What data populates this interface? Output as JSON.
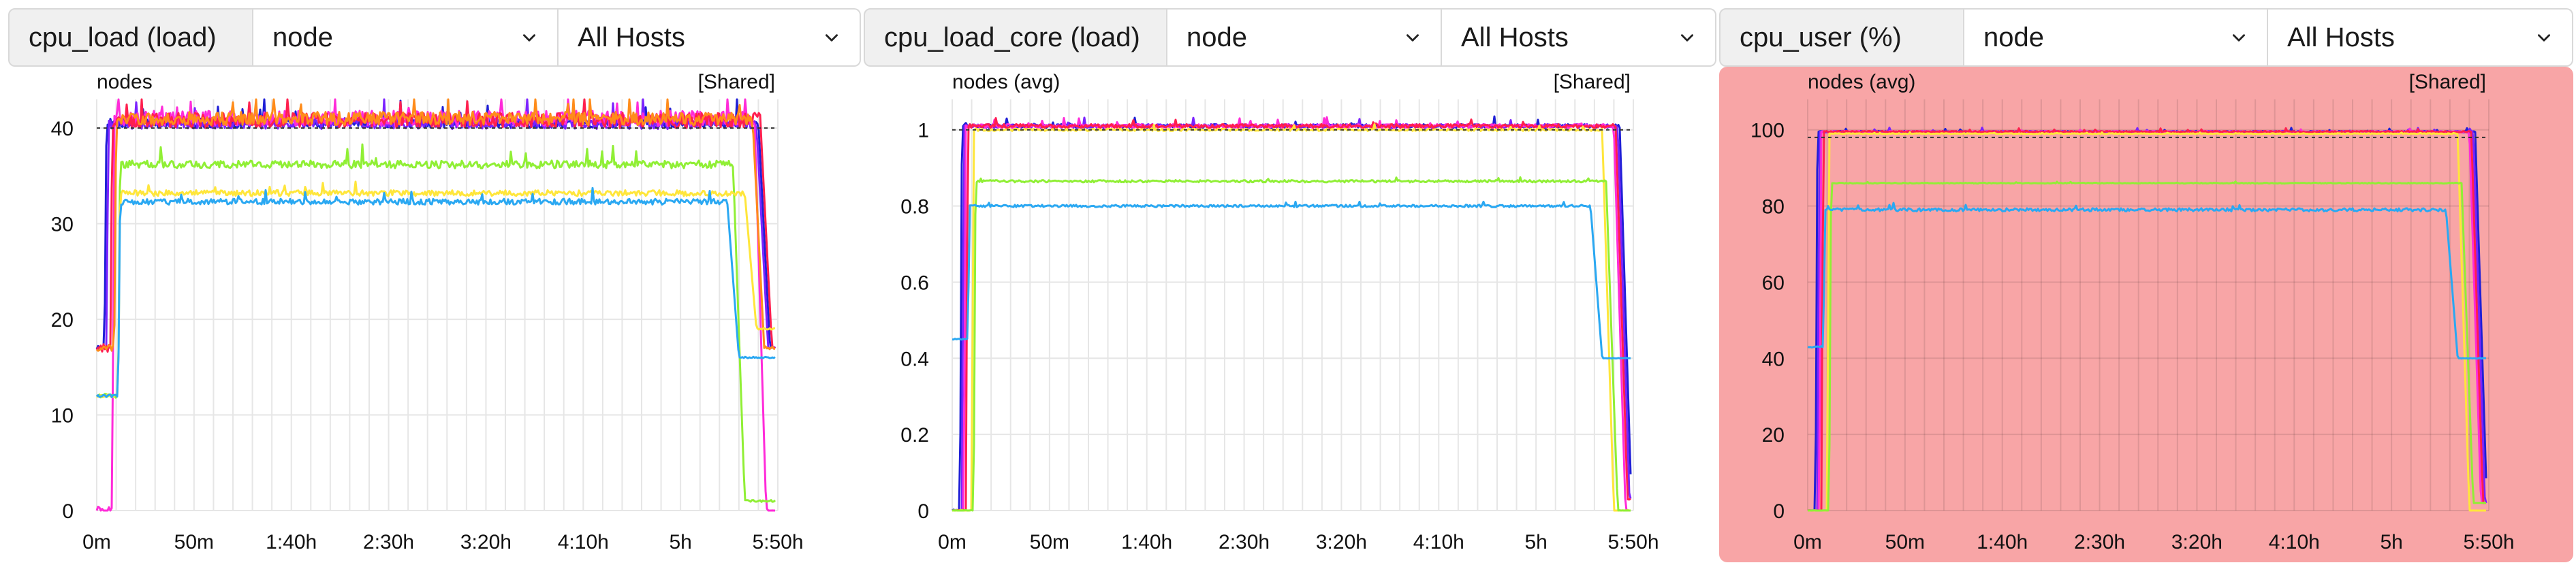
{
  "panels": [
    {
      "metric_label": "cpu_load (load)",
      "group_by": "node",
      "hosts": "All Hosts",
      "chart_title": "nodes",
      "shared_label": "[Shared]",
      "alert": false
    },
    {
      "metric_label": "cpu_load_core (load)",
      "group_by": "node",
      "hosts": "All Hosts",
      "chart_title": "nodes (avg)",
      "shared_label": "[Shared]",
      "alert": false
    },
    {
      "metric_label": "cpu_user (%)",
      "group_by": "node",
      "hosts": "All Hosts",
      "chart_title": "nodes (avg)",
      "shared_label": "[Shared]",
      "alert": true
    }
  ],
  "colors": {
    "alert_background": "#f8a5a6",
    "series": [
      "#1f1fd6",
      "#7b22ff",
      "#ff2bd9",
      "#ff1f4e",
      "#d6133a",
      "#ff8c1a",
      "#ffe63b",
      "#90ef35",
      "#2aa8f2"
    ]
  },
  "chart_data": [
    {
      "type": "line",
      "title": "nodes",
      "xlabel": "",
      "ylabel": "",
      "x_ticks": [
        "0m",
        "50m",
        "1:40h",
        "2:30h",
        "3:20h",
        "4:10h",
        "5h",
        "5:50h"
      ],
      "y_ticks": [
        "0",
        "10",
        "20",
        "30",
        "40"
      ],
      "xlim_minutes": [
        0,
        350
      ],
      "ylim": [
        0,
        43
      ],
      "reference_line": 40,
      "grid": true,
      "series": [
        {
          "color": "#1f1fd6",
          "base": 40.5,
          "ramp": 5,
          "end": 340,
          "final": 17,
          "start": 17,
          "noise": 0.5
        },
        {
          "color": "#7b22ff",
          "base": 40.5,
          "ramp": 6,
          "end": 339,
          "final": 17,
          "start": 17,
          "noise": 0.6
        },
        {
          "color": "#ff2bd9",
          "base": 41,
          "ramp": 9,
          "end": 338,
          "final": 0,
          "start": 0,
          "noise": 0.8
        },
        {
          "color": "#ff1f4e",
          "base": 40.8,
          "ramp": 8,
          "end": 341,
          "final": 17,
          "start": 17,
          "noise": 0.8
        },
        {
          "color": "#ff8c1a",
          "base": 41,
          "ramp": 10,
          "end": 337,
          "final": 17,
          "start": 17,
          "noise": 0.7
        },
        {
          "color": "#90ef35",
          "base": 36.2,
          "ramp": 12,
          "end": 327,
          "final": 1,
          "start": 12,
          "noise": 0.4
        },
        {
          "color": "#ffe63b",
          "base": 33.2,
          "ramp": 12,
          "end": 333,
          "final": 19,
          "start": 12,
          "noise": 0.3
        },
        {
          "color": "#2aa8f2",
          "base": 32.3,
          "ramp": 12,
          "end": 324,
          "final": 16,
          "start": 12,
          "noise": 0.3
        }
      ]
    },
    {
      "type": "line",
      "title": "nodes (avg)",
      "xlabel": "",
      "ylabel": "",
      "x_ticks": [
        "0m",
        "50m",
        "1:40h",
        "2:30h",
        "3:20h",
        "4:10h",
        "5h",
        "5:50h"
      ],
      "y_ticks": [
        "0",
        "0.2",
        "0.4",
        "0.6",
        "0.8",
        "1"
      ],
      "xlim_minutes": [
        0,
        350
      ],
      "ylim": [
        0,
        1.08
      ],
      "reference_line": 1.0,
      "grid": true,
      "series": [
        {
          "color": "#1f1fd6",
          "base": 1.01,
          "ramp": 5,
          "end": 343,
          "final": 0.03,
          "start": 0,
          "noise": 0.005
        },
        {
          "color": "#7b22ff",
          "base": 1.01,
          "ramp": 6,
          "end": 342,
          "final": 0.03,
          "start": 0,
          "noise": 0.005
        },
        {
          "color": "#ff2bd9",
          "base": 1.01,
          "ramp": 7,
          "end": 340,
          "final": 0.0,
          "start": 0,
          "noise": 0.005
        },
        {
          "color": "#ff1f4e",
          "base": 1.01,
          "ramp": 8,
          "end": 341,
          "final": 0.03,
          "start": 0,
          "noise": 0.005
        },
        {
          "color": "#ffe63b",
          "base": 1.0,
          "ramp": 11,
          "end": 334,
          "final": 0.0,
          "start": 0,
          "noise": 0.003
        },
        {
          "color": "#90ef35",
          "base": 0.865,
          "ramp": 12,
          "end": 336,
          "final": 0.0,
          "start": 0,
          "noise": 0.003
        },
        {
          "color": "#2aa8f2",
          "base": 0.8,
          "ramp": 9,
          "end": 328,
          "final": 0.4,
          "start": 0.45,
          "noise": 0.003
        }
      ]
    },
    {
      "type": "line",
      "title": "nodes (avg)",
      "xlabel": "",
      "ylabel": "",
      "x_ticks": [
        "0m",
        "50m",
        "1:40h",
        "2:30h",
        "3:20h",
        "4:10h",
        "5h",
        "5:50h"
      ],
      "y_ticks": [
        "0",
        "20",
        "40",
        "60",
        "80",
        "100"
      ],
      "xlim_minutes": [
        0,
        350
      ],
      "ylim": [
        0,
        108
      ],
      "reference_line": 98,
      "grid": true,
      "series": [
        {
          "color": "#1f1fd6",
          "base": 99.5,
          "ramp": 5,
          "end": 343,
          "final": 2,
          "start": 0,
          "noise": 0.2
        },
        {
          "color": "#7b22ff",
          "base": 99.5,
          "ramp": 6,
          "end": 342,
          "final": 2,
          "start": 0,
          "noise": 0.2
        },
        {
          "color": "#ff2bd9",
          "base": 99.5,
          "ramp": 7,
          "end": 340,
          "final": 2,
          "start": 0,
          "noise": 0.2
        },
        {
          "color": "#ff1f4e",
          "base": 99.5,
          "ramp": 8,
          "end": 341,
          "final": 2,
          "start": 0,
          "noise": 0.2
        },
        {
          "color": "#ffe63b",
          "base": 99.0,
          "ramp": 11,
          "end": 334,
          "final": 0,
          "start": 0,
          "noise": 0.1
        },
        {
          "color": "#90ef35",
          "base": 86.0,
          "ramp": 12,
          "end": 336,
          "final": 2,
          "start": 0,
          "noise": 0.1
        },
        {
          "color": "#2aa8f2",
          "base": 79.0,
          "ramp": 9,
          "end": 328,
          "final": 40,
          "start": 43,
          "noise": 0.4
        }
      ]
    }
  ]
}
